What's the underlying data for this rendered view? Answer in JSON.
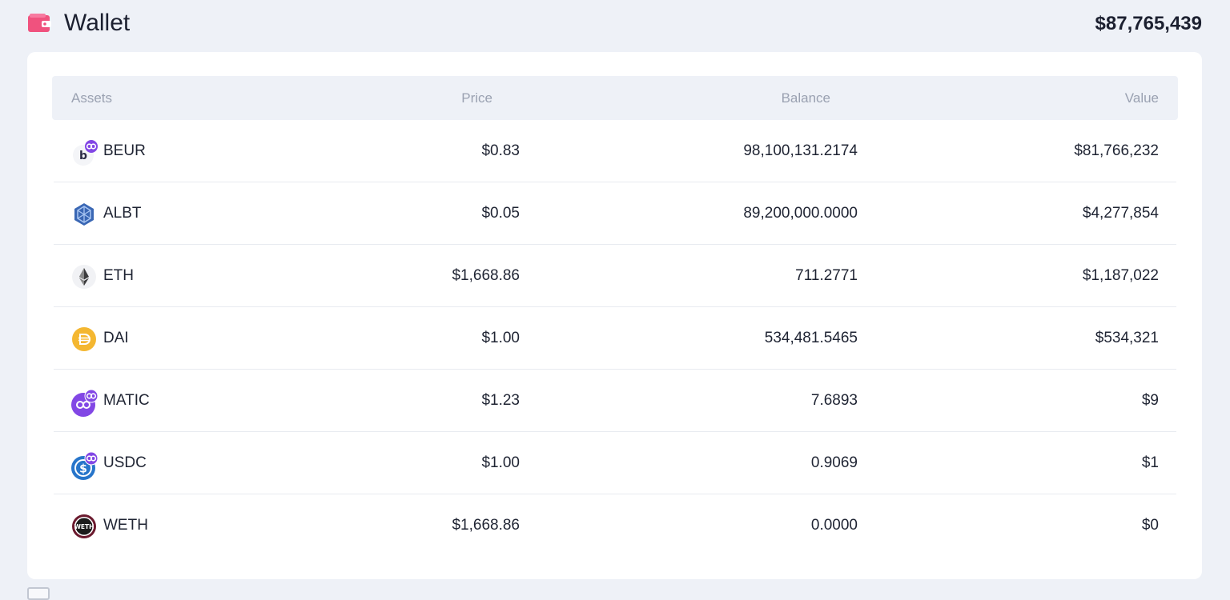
{
  "header": {
    "title": "Wallet",
    "total": "$87,765,439",
    "icon": "wallet-icon",
    "icon_color": "#f0527e"
  },
  "table": {
    "columns": {
      "asset": "Assets",
      "price": "Price",
      "balance": "Balance",
      "value": "Value"
    },
    "rows": [
      {
        "symbol": "BEUR",
        "price": "$0.83",
        "balance": "98,100,131.2174",
        "value": "$81,766,232",
        "icon": "beur-token-icon",
        "network_badge": "polygon-badge-icon"
      },
      {
        "symbol": "ALBT",
        "price": "$0.05",
        "balance": "89,200,000.0000",
        "value": "$4,277,854",
        "icon": "albt-token-icon"
      },
      {
        "symbol": "ETH",
        "price": "$1,668.86",
        "balance": "711.2771",
        "value": "$1,187,022",
        "icon": "eth-token-icon"
      },
      {
        "symbol": "DAI",
        "price": "$1.00",
        "balance": "534,481.5465",
        "value": "$534,321",
        "icon": "dai-token-icon"
      },
      {
        "symbol": "MATIC",
        "price": "$1.23",
        "balance": "7.6893",
        "value": "$9",
        "icon": "matic-token-icon",
        "network_badge": "polygon-badge-icon"
      },
      {
        "symbol": "USDC",
        "price": "$1.00",
        "balance": "0.9069",
        "value": "$1",
        "icon": "usdc-token-icon",
        "network_badge": "polygon-badge-icon"
      },
      {
        "symbol": "WETH",
        "price": "$1,668.86",
        "balance": "0.0000",
        "value": "$0",
        "icon": "weth-token-icon"
      }
    ]
  },
  "colors": {
    "background": "#eef1f7",
    "card": "#ffffff",
    "header_text": "#9aa1b1",
    "polygon_purple": "#8247e5",
    "dai_yellow": "#f4b731",
    "usdc_blue": "#2775ca"
  }
}
